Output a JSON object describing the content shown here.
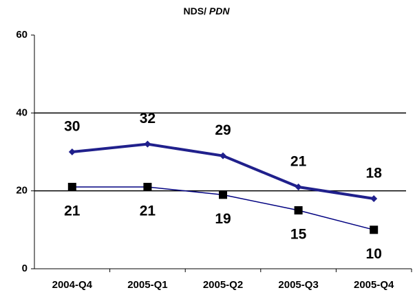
{
  "chart_data": {
    "type": "line",
    "title": [
      "NDS/",
      "PDN"
    ],
    "categories": [
      "2004-Q4",
      "2005-Q1",
      "2005-Q2",
      "2005-Q3",
      "2005-Q4"
    ],
    "series": [
      {
        "color": "#20208c",
        "marker": "diamond",
        "values": [
          30,
          32,
          29,
          21,
          18
        ]
      },
      {
        "color": "#000080",
        "marker": "square",
        "values": [
          21,
          21,
          19,
          15,
          10
        ]
      }
    ],
    "ylim": [
      0,
      60
    ],
    "yticks": [
      0,
      20,
      40,
      60
    ],
    "grid": true
  }
}
